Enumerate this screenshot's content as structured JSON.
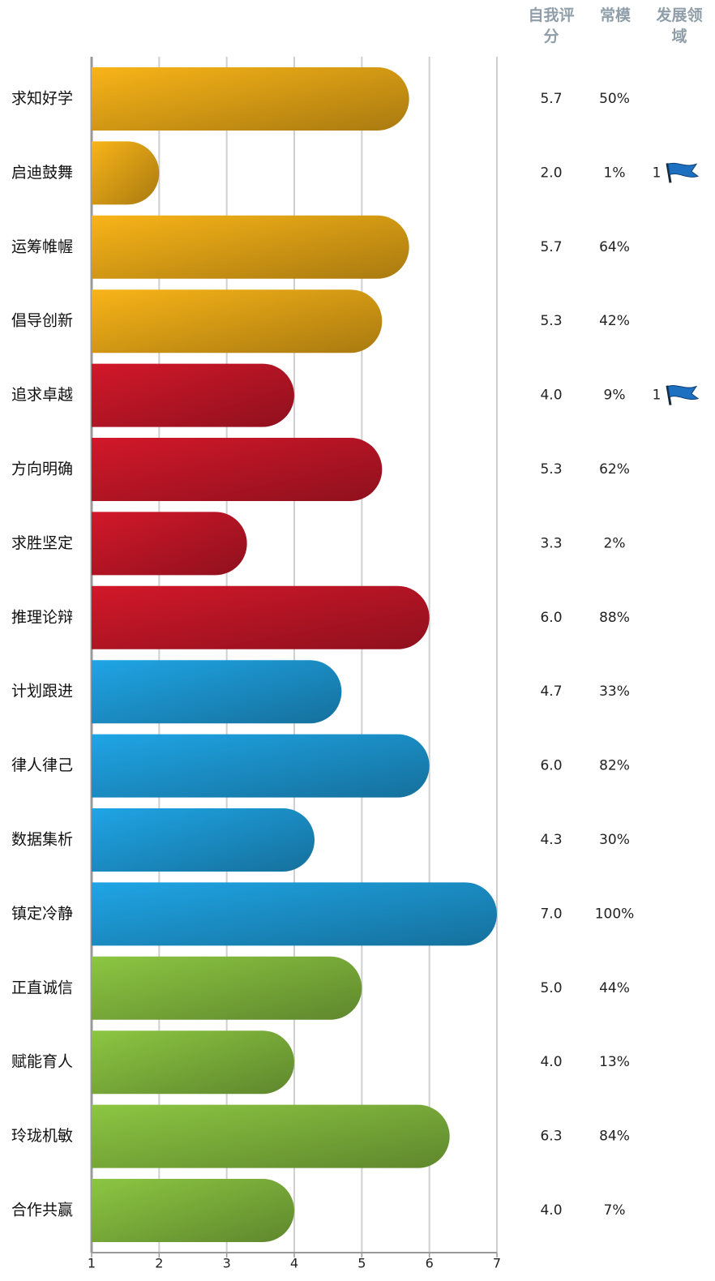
{
  "chart_data": {
    "type": "bar",
    "columns": [
      "自我评分",
      "常模",
      "发展领域"
    ],
    "categories": [
      "求知好学",
      "启迪鼓舞",
      "运筹帷幄",
      "倡导创新",
      "追求卓越",
      "方向明确",
      "求胜坚定",
      "推理论辩",
      "计划跟进",
      "律人律己",
      "数据集析",
      "镇定冷静",
      "正直诚信",
      "赋能育人",
      "玲珑机敏",
      "合作共赢"
    ],
    "values": [
      5.7,
      2.0,
      5.7,
      5.3,
      4.0,
      5.3,
      3.3,
      6.0,
      4.7,
      6.0,
      4.3,
      7.0,
      5.0,
      4.0,
      6.3,
      4.0
    ],
    "value_labels": [
      "5.7",
      "2.0",
      "5.7",
      "5.3",
      "4.0",
      "5.3",
      "3.3",
      "6.0",
      "4.7",
      "6.0",
      "4.3",
      "7.0",
      "5.0",
      "4.0",
      "6.3",
      "4.0"
    ],
    "norm_values": [
      50,
      1,
      64,
      42,
      9,
      62,
      2,
      88,
      33,
      82,
      30,
      100,
      44,
      13,
      84,
      7
    ],
    "norm_labels": [
      "50%",
      "1%",
      "64%",
      "42%",
      "9%",
      "62%",
      "2%",
      "88%",
      "33%",
      "82%",
      "30%",
      "100%",
      "44%",
      "13%",
      "84%",
      "7%"
    ],
    "development": [
      null,
      1,
      null,
      null,
      1,
      null,
      null,
      null,
      null,
      null,
      null,
      null,
      null,
      null,
      null,
      null
    ],
    "colors": [
      "#f8b418",
      "#f8b418",
      "#f8b418",
      "#f8b418",
      "#d2182a",
      "#d2182a",
      "#d2182a",
      "#d2182a",
      "#1fa5e5",
      "#1fa5e5",
      "#1fa5e5",
      "#1fa5e5",
      "#8cc642",
      "#8cc642",
      "#8cc642",
      "#8cc642"
    ],
    "xlim": [
      1,
      7
    ],
    "xticks": [
      1,
      2,
      3,
      4,
      5,
      6,
      7
    ],
    "grid": true
  }
}
